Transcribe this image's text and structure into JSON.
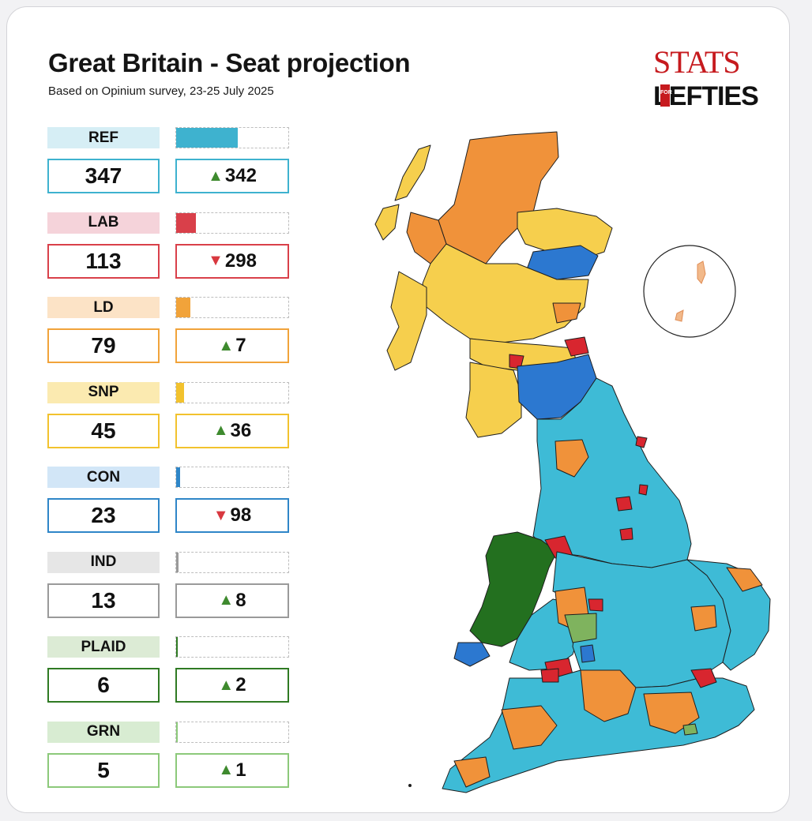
{
  "title": "Great Britain - Seat projection",
  "subtitle": "Based on Opinium survey, 23-25 July 2025",
  "logo": {
    "top": "STATS",
    "bottom": "LEFTIES",
    "badge": "FOR"
  },
  "max_seats": 347,
  "parties": [
    {
      "name": "REF",
      "seats": 347,
      "change": 342,
      "direction": "up",
      "label_bg": "#d6eef5",
      "color": "#3eb2cf"
    },
    {
      "name": "LAB",
      "seats": 113,
      "change": 298,
      "direction": "down",
      "label_bg": "#f5d3da",
      "color": "#d9404a"
    },
    {
      "name": "LD",
      "seats": 79,
      "change": 7,
      "direction": "up",
      "label_bg": "#fce3c6",
      "color": "#f1a33a"
    },
    {
      "name": "SNP",
      "seats": 45,
      "change": 36,
      "direction": "up",
      "label_bg": "#fbeab0",
      "color": "#f2c22e"
    },
    {
      "name": "CON",
      "seats": 23,
      "change": 98,
      "direction": "down",
      "label_bg": "#d2e6f7",
      "color": "#2f86c8"
    },
    {
      "name": "IND",
      "seats": 13,
      "change": 8,
      "direction": "up",
      "label_bg": "#e6e6e6",
      "color": "#9a9a9a"
    },
    {
      "name": "PLAID",
      "seats": 6,
      "change": 2,
      "direction": "up",
      "label_bg": "#dcebd5",
      "color": "#2f7a23"
    },
    {
      "name": "GRN",
      "seats": 5,
      "change": 1,
      "direction": "up",
      "label_bg": "#d8ecd2",
      "color": "#8cc97a"
    }
  ],
  "map_colors": {
    "ref": "#3ebbd6",
    "lab": "#d8262f",
    "ld": "#f0923a",
    "snp": "#f6cf4d",
    "con": "#2c78d0",
    "plaid": "#23701f",
    "grn": "#7fb35e",
    "border": "#1e1e1e"
  }
}
